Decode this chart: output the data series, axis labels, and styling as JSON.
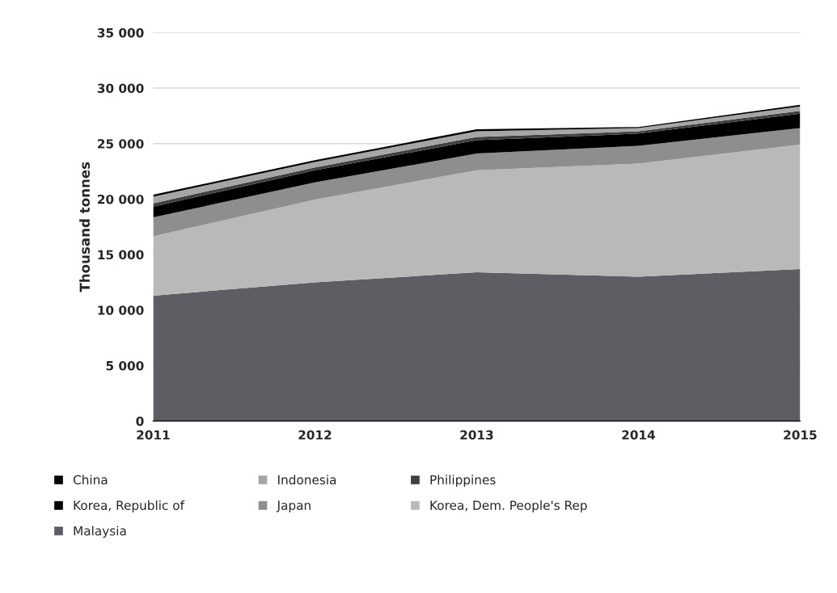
{
  "chart_data": {
    "type": "area",
    "stacked": true,
    "ylabel": "Thousand tonnes",
    "categories": [
      "2011",
      "2012",
      "2013",
      "2014",
      "2015"
    ],
    "series": [
      {
        "name": "Malaysia",
        "color": "#5e5d63",
        "values": [
          11300,
          12500,
          13400,
          13000,
          13700
        ]
      },
      {
        "name": "Korea, Dem. People's Rep",
        "color": "#b9b9b9",
        "values": [
          5350,
          7450,
          9200,
          10200,
          11200
        ]
      },
      {
        "name": "Japan",
        "color": "#8e8e8e",
        "values": [
          1700,
          1550,
          1500,
          1600,
          1500
        ]
      },
      {
        "name": "Korea, Republic of",
        "color": "#000000",
        "values": [
          970,
          1100,
          1200,
          1100,
          1300
        ]
      },
      {
        "name": "Philippines",
        "color": "#404040",
        "values": [
          300,
          250,
          300,
          200,
          250
        ]
      },
      {
        "name": "Indonesia",
        "color": "#a6a6a6",
        "values": [
          600,
          500,
          500,
          300,
          400
        ]
      },
      {
        "name": "China",
        "color": "#000000",
        "values": [
          170,
          150,
          200,
          100,
          150
        ]
      }
    ],
    "ylim": [
      0,
      35000
    ],
    "yticks": [
      0,
      {
        "value": 5000,
        "label": "5 000"
      },
      {
        "value": 10000,
        "label": "10 000"
      },
      {
        "value": 15000,
        "label": "15 000"
      },
      {
        "value": 20000,
        "label": "20 000"
      },
      {
        "value": 25000,
        "label": "25 000"
      },
      {
        "value": 30000,
        "label": "30 000"
      },
      {
        "value": 35000,
        "label": "35 000"
      }
    ],
    "grid": "y",
    "legend": "bottom"
  }
}
